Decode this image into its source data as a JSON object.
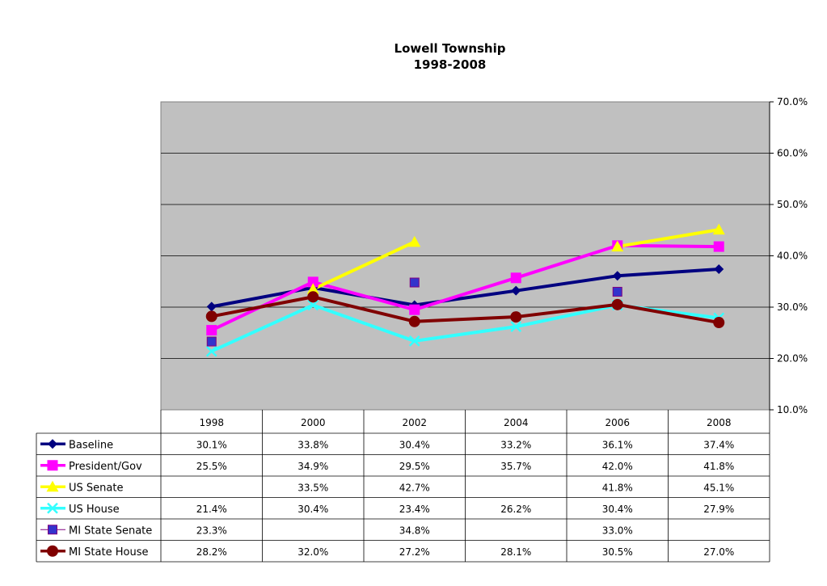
{
  "chart_data": {
    "type": "line",
    "title": "Lowell Township",
    "subtitle": "1998-2008",
    "categories": [
      "1998",
      "2000",
      "2002",
      "2004",
      "2006",
      "2008"
    ],
    "ylim": [
      10,
      70
    ],
    "yticks": [
      10,
      20,
      30,
      40,
      50,
      60,
      70
    ],
    "ytick_labels": [
      "10.0%",
      "20.0%",
      "30.0%",
      "40.0%",
      "50.0%",
      "60.0%",
      "70.0%"
    ],
    "y_axis_position": "right",
    "grid": true,
    "plot_background": "#c0c0c0",
    "legend": "data-table-below",
    "series": [
      {
        "name": "Baseline",
        "color": "#000080",
        "marker": "diamond",
        "line": true,
        "values": [
          30.1,
          33.8,
          30.4,
          33.2,
          36.1,
          37.4
        ],
        "labels": [
          "30.1%",
          "33.8%",
          "30.4%",
          "33.2%",
          "36.1%",
          "37.4%"
        ]
      },
      {
        "name": "President/Gov",
        "color": "#ff00ff",
        "marker": "square",
        "line": true,
        "values": [
          25.5,
          34.9,
          29.5,
          35.7,
          42.0,
          41.8
        ],
        "labels": [
          "25.5%",
          "34.9%",
          "29.5%",
          "35.7%",
          "42.0%",
          "41.8%"
        ]
      },
      {
        "name": "US Senate",
        "color": "#ffff00",
        "marker": "triangle",
        "line": true,
        "values": [
          null,
          33.5,
          42.7,
          null,
          41.8,
          45.1
        ],
        "labels": [
          "",
          "33.5%",
          "42.7%",
          "",
          "41.8%",
          "45.1%"
        ]
      },
      {
        "name": "US House",
        "color": "#33ffff",
        "marker": "x",
        "line": true,
        "values": [
          21.4,
          30.4,
          23.4,
          26.2,
          30.4,
          27.9
        ],
        "labels": [
          "21.4%",
          "30.4%",
          "23.4%",
          "26.2%",
          "30.4%",
          "27.9%"
        ]
      },
      {
        "name": "MI State Senate",
        "color": "#3333cc",
        "marker": "square-small",
        "line": false,
        "values": [
          23.3,
          null,
          34.8,
          null,
          33.0,
          null
        ],
        "labels": [
          "23.3%",
          "",
          "34.8%",
          "",
          "33.0%",
          ""
        ]
      },
      {
        "name": "MI State House",
        "color": "#800000",
        "marker": "circle",
        "line": true,
        "values": [
          28.2,
          32.0,
          27.2,
          28.1,
          30.5,
          27.0
        ],
        "labels": [
          "28.2%",
          "32.0%",
          "27.2%",
          "28.1%",
          "30.5%",
          "27.0%"
        ]
      }
    ]
  }
}
